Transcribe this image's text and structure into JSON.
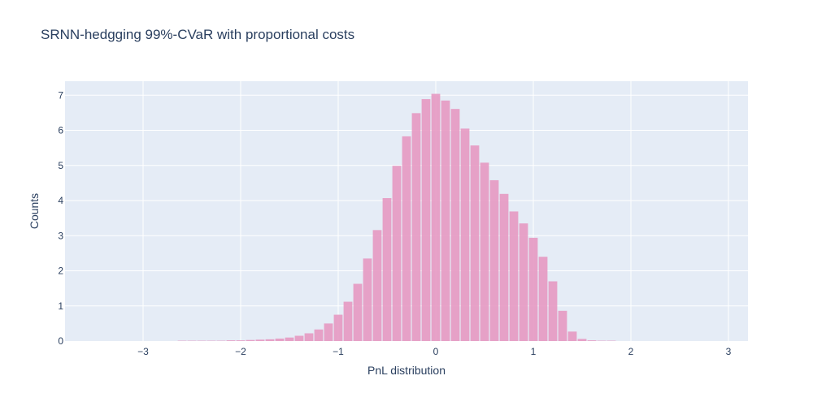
{
  "chart_data": {
    "type": "bar",
    "title": "SRNN-hedgging 99%-CVaR with proportional costs",
    "xlabel": "PnL distribution",
    "ylabel": "Counts",
    "xlim": [
      -3.8,
      3.2
    ],
    "ylim": [
      0,
      7.4
    ],
    "x_ticks": [
      -3,
      -2,
      -1,
      0,
      1,
      2,
      3
    ],
    "y_ticks": [
      0,
      1,
      2,
      3,
      4,
      5,
      6,
      7
    ],
    "grid": true,
    "bar_color": "#e599c2",
    "bin_width": 0.1,
    "bin_centers": [
      -2.6,
      -2.5,
      -2.4,
      -2.3,
      -2.2,
      -2.1,
      -2.0,
      -1.9,
      -1.8,
      -1.7,
      -1.6,
      -1.5,
      -1.4,
      -1.3,
      -1.2,
      -1.1,
      -1.0,
      -0.9,
      -0.8,
      -0.7,
      -0.6,
      -0.5,
      -0.4,
      -0.3,
      -0.2,
      -0.1,
      0.0,
      0.1,
      0.2,
      0.3,
      0.4,
      0.5,
      0.6,
      0.7,
      0.8,
      0.9,
      1.0,
      1.1,
      1.2,
      1.3,
      1.4,
      1.5,
      1.6,
      1.7,
      1.8
    ],
    "values": [
      0.01,
      0.01,
      0.01,
      0.01,
      0.01,
      0.02,
      0.02,
      0.03,
      0.04,
      0.05,
      0.07,
      0.1,
      0.15,
      0.22,
      0.33,
      0.5,
      0.75,
      1.12,
      1.63,
      2.35,
      3.16,
      4.07,
      4.99,
      5.83,
      6.49,
      6.89,
      7.04,
      6.85,
      6.61,
      6.05,
      5.57,
      5.08,
      4.58,
      4.19,
      3.69,
      3.35,
      2.94,
      2.4,
      1.7,
      0.86,
      0.27,
      0.06,
      0.02,
      0.01,
      0.01
    ]
  }
}
